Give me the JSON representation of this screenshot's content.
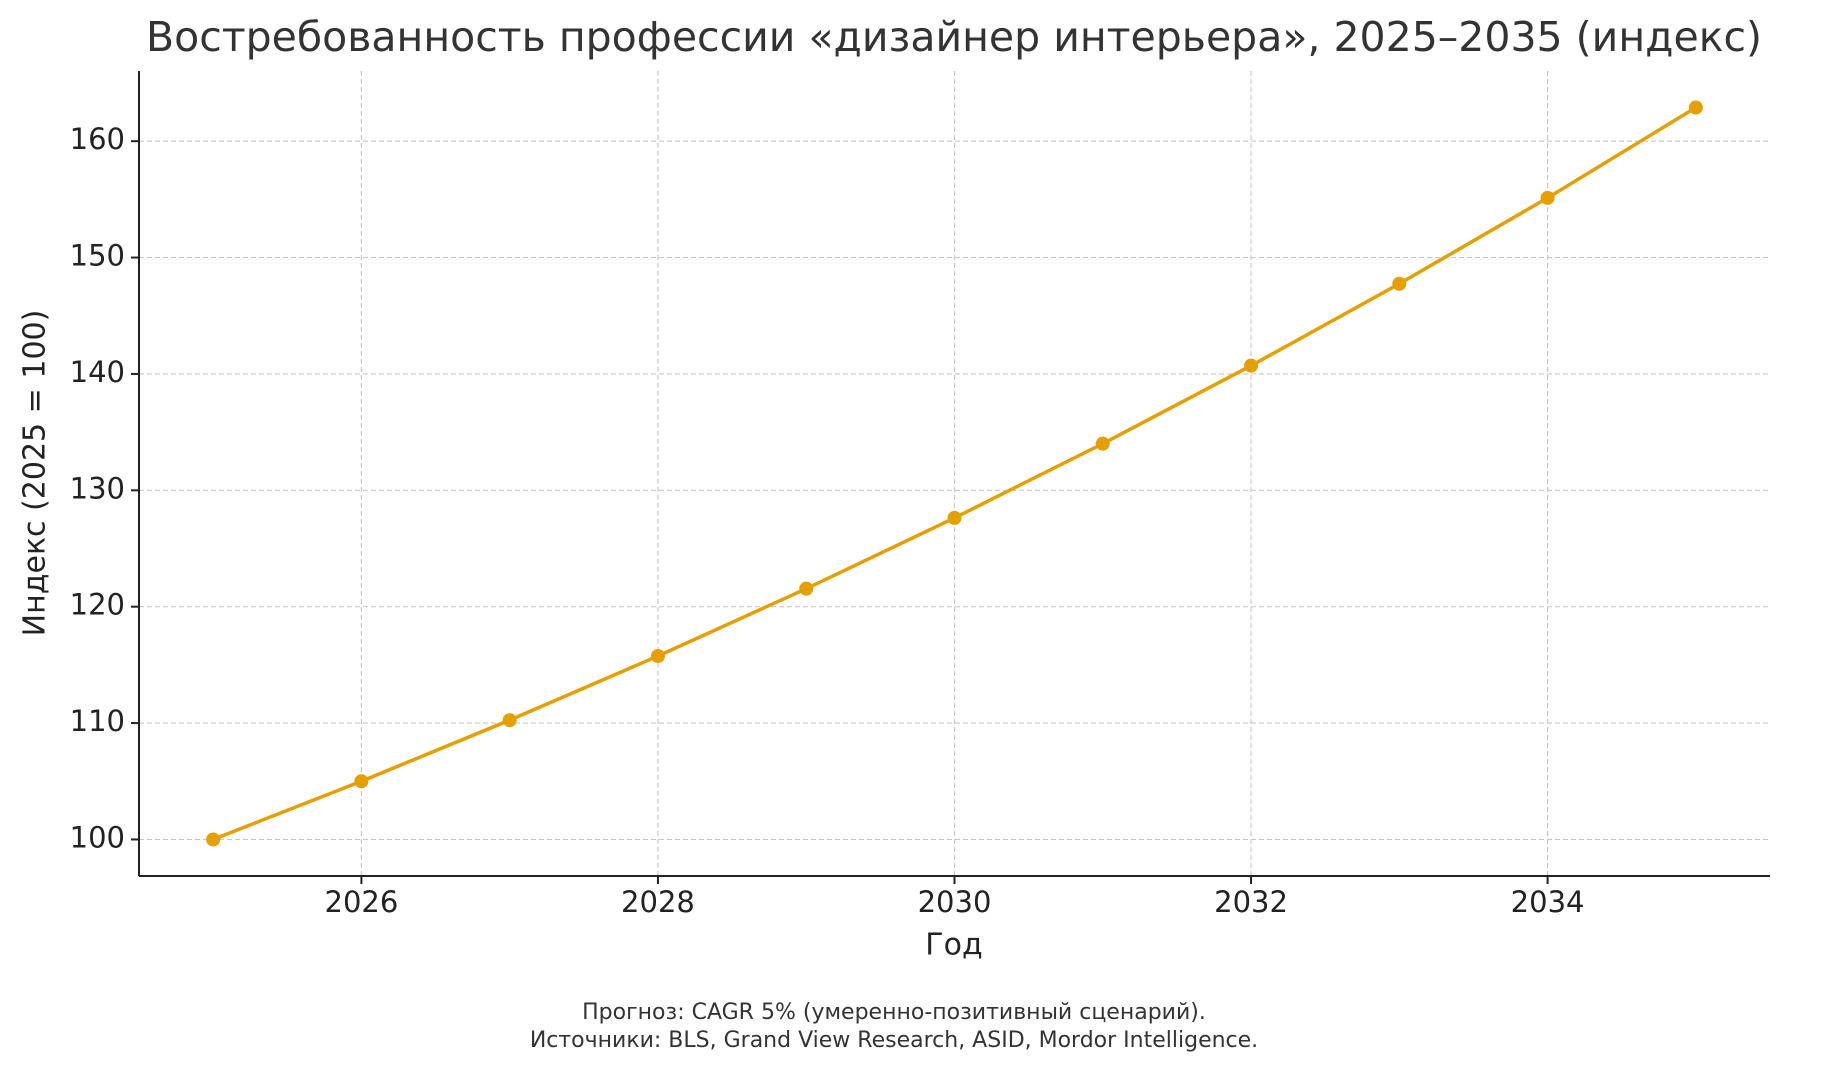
{
  "chart_data": {
    "type": "line",
    "title": "Востребованность профессии «дизайнер интерьера», 2025–2035 (индекс)",
    "x_label": "Год",
    "y_label": "Индекс (2025 = 100)",
    "footnote": [
      "Прогноз: CAGR 5% (умеренно-позитивный сценарий).",
      "Источники: BLS, Grand View Research, ASID, Mordor Intelligence."
    ],
    "x": [
      2025,
      2026,
      2027,
      2028,
      2029,
      2030,
      2031,
      2032,
      2033,
      2034,
      2035
    ],
    "series": [
      {
        "name": "Индекс",
        "color": "#e69f00",
        "values": [
          100,
          105,
          110.25,
          115.76,
          121.55,
          127.63,
          134.01,
          140.71,
          147.75,
          155.13,
          162.89
        ]
      }
    ],
    "xlim": [
      2024.5,
      2035.5
    ],
    "xticks": [
      2026,
      2028,
      2030,
      2032,
      2034
    ],
    "ylim": [
      96.86,
      166.03
    ],
    "yticks": [
      100,
      110,
      120,
      130,
      140,
      150,
      160
    ],
    "grid": true
  }
}
